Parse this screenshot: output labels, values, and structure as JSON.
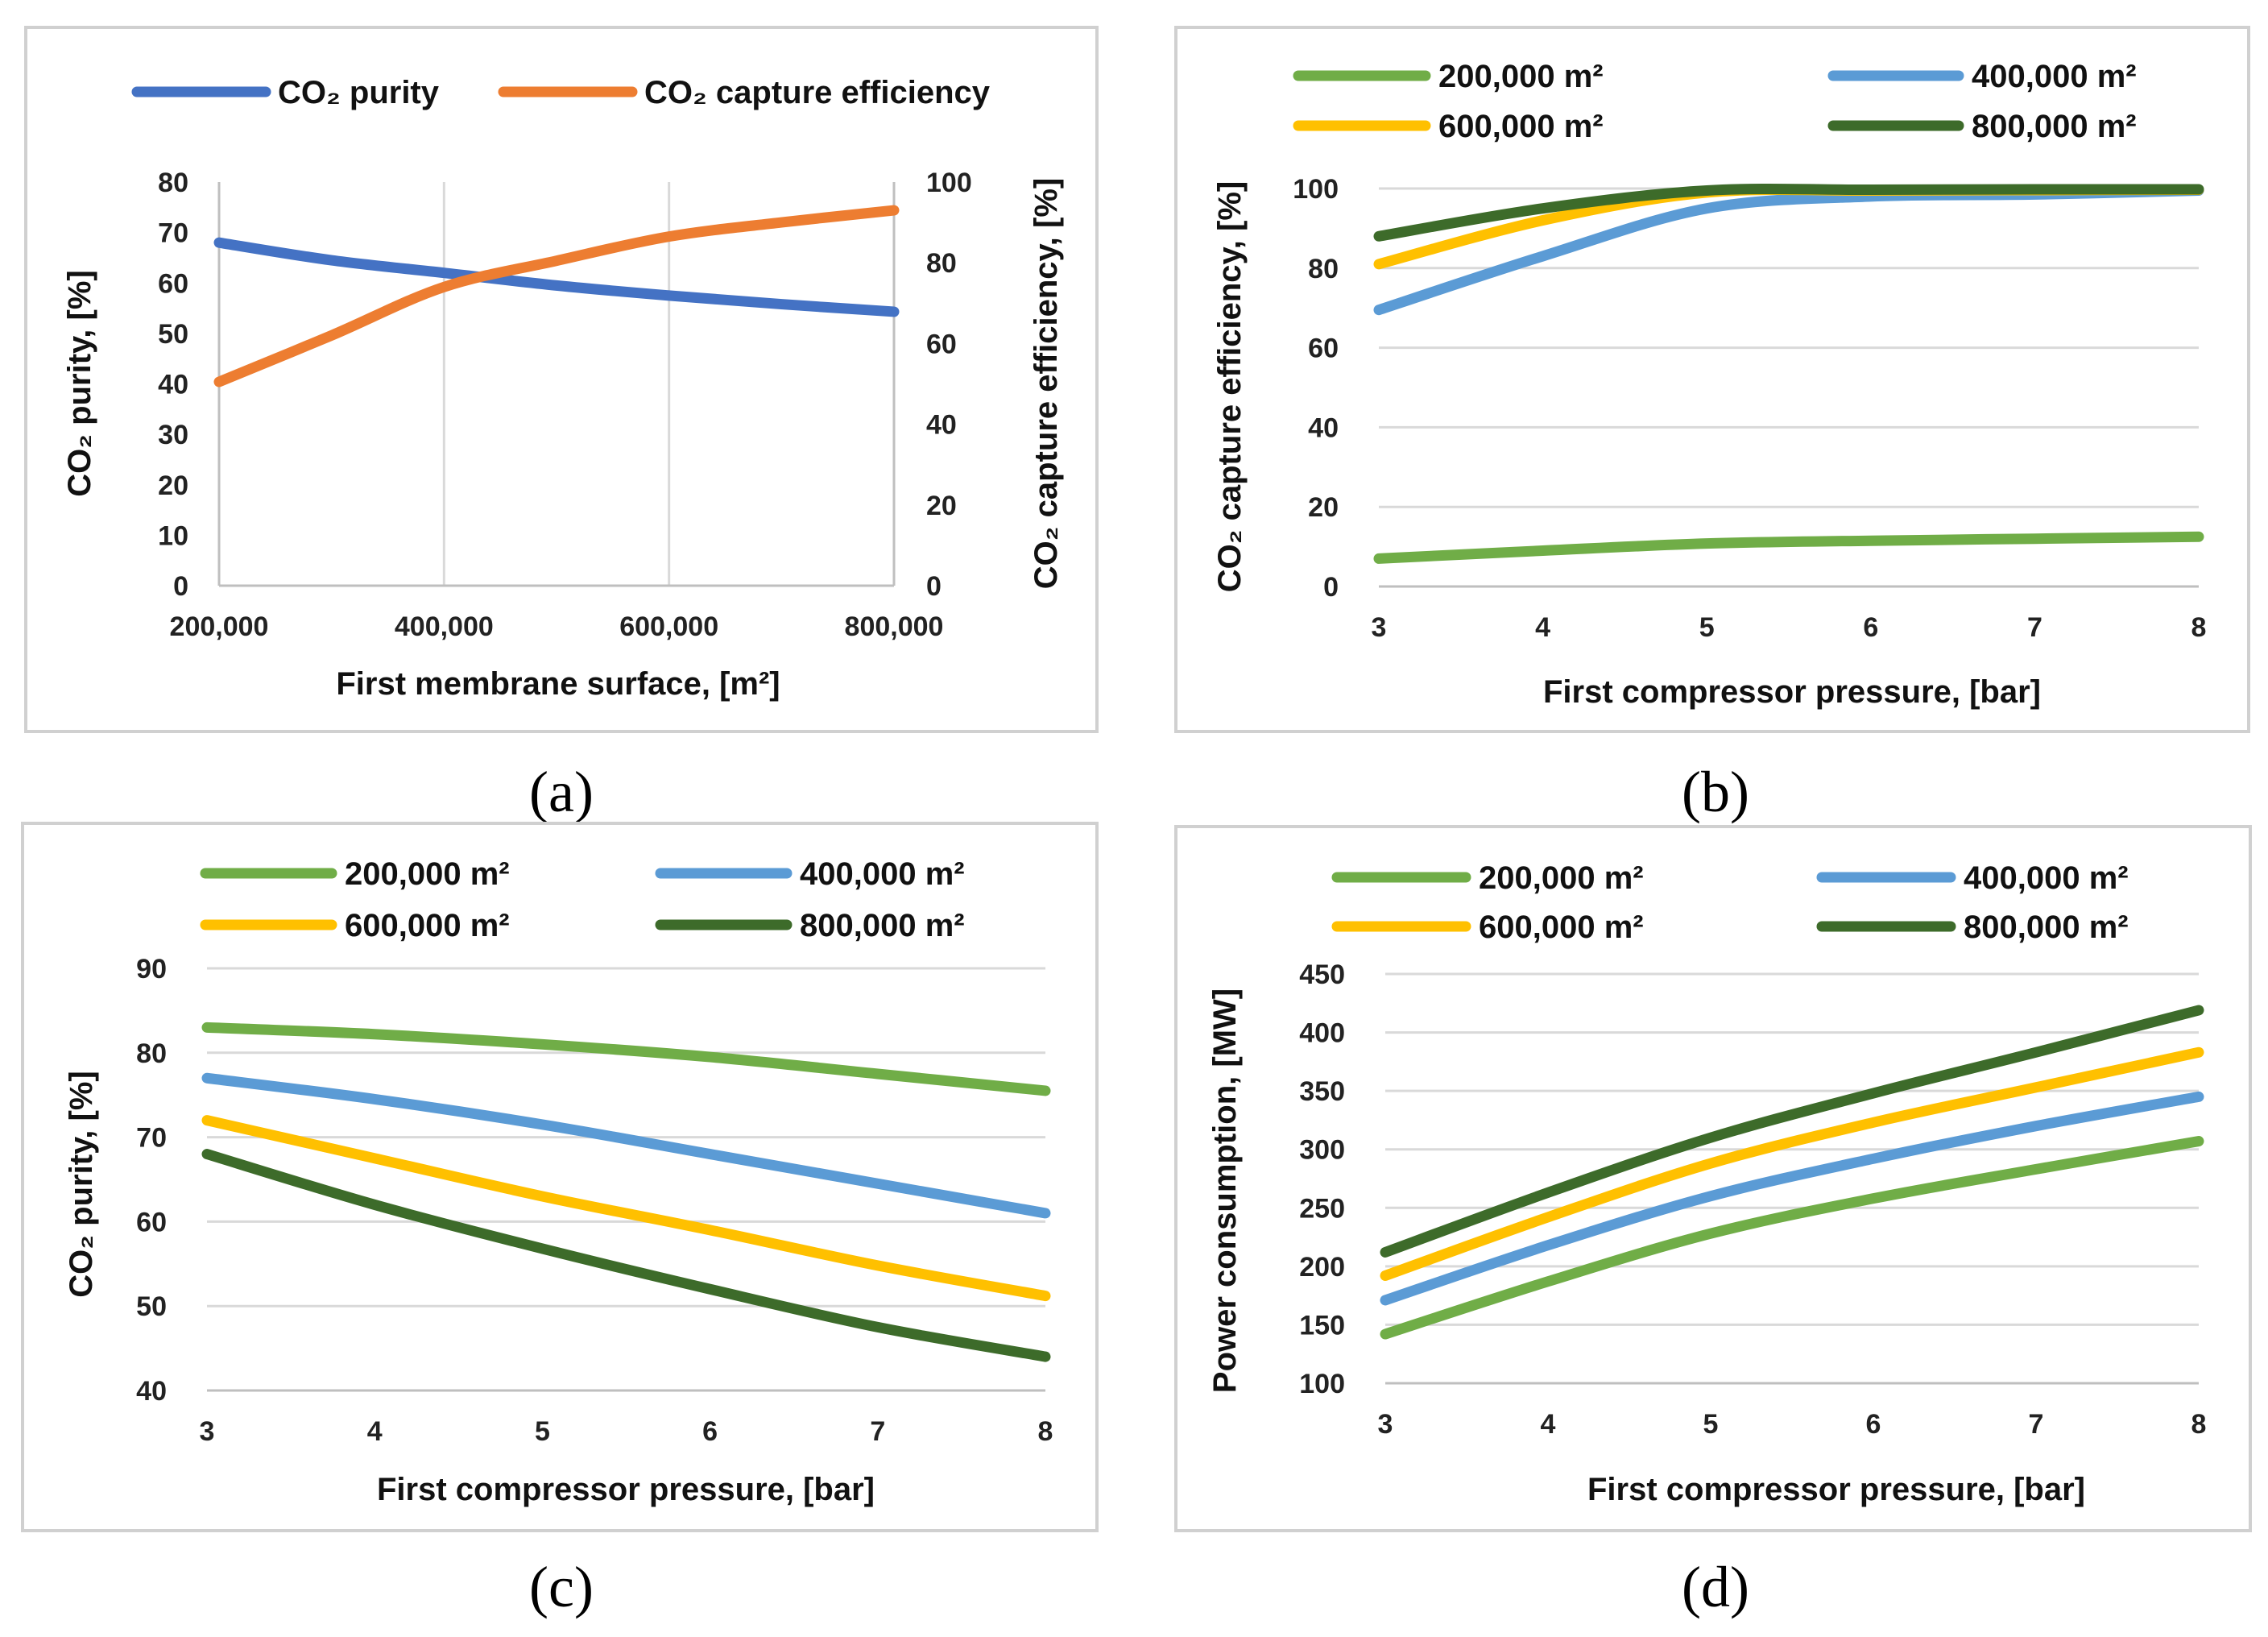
{
  "colors": {
    "blue_a": "#4472C4",
    "orange_a": "#ED7D31",
    "green": "#70AD47",
    "lightblue": "#5B9BD5",
    "yellow": "#FFC000",
    "darkgreen": "#3D6B2A"
  },
  "chart_data": [
    {
      "id": "a",
      "type": "line",
      "caption": "(a)",
      "caption_letter": "a",
      "xlabel": "First membrane surface, [m²]",
      "ylabel_left": "CO₂ purity, [%]",
      "ylabel_right": "CO₂ capture efficiency, [%]",
      "x": [
        200000,
        300000,
        400000,
        500000,
        600000,
        700000,
        800000
      ],
      "xticks": [
        "200,000",
        "400,000",
        "600,000",
        "800,000"
      ],
      "xtick_values": [
        200000,
        400000,
        600000,
        800000
      ],
      "xlim": [
        200000,
        800000
      ],
      "ylim_left": [
        0,
        80
      ],
      "yticks_left": [
        "0",
        "10",
        "20",
        "30",
        "40",
        "50",
        "60",
        "70",
        "80"
      ],
      "ylim_right": [
        0,
        100
      ],
      "yticks_right": [
        "0",
        "20",
        "40",
        "60",
        "80",
        "100"
      ],
      "series": [
        {
          "name": "CO₂ purity",
          "color_key": "blue_a",
          "axis": "left",
          "values": [
            68,
            64.5,
            62,
            59.5,
            57.5,
            55.8,
            54.3
          ]
        },
        {
          "name": "CO₂ capture efficiency",
          "color_key": "orange_a",
          "axis": "right",
          "values": [
            50.5,
            62,
            74,
            80.5,
            86.5,
            90,
            93
          ]
        }
      ]
    },
    {
      "id": "b",
      "type": "line",
      "caption": "(b)",
      "caption_letter": "b",
      "xlabel": "First compressor pressure, [bar]",
      "ylabel": "CO₂ capture efficiency, [%]",
      "x": [
        3,
        4,
        5,
        6,
        7,
        8
      ],
      "xticks": [
        "3",
        "4",
        "5",
        "6",
        "7",
        "8"
      ],
      "xlim": [
        3,
        8
      ],
      "ylim": [
        0,
        100
      ],
      "yticks": [
        "0",
        "20",
        "40",
        "60",
        "80",
        "100"
      ],
      "series": [
        {
          "name": "200,000 m²",
          "color_key": "green",
          "values": [
            7,
            9,
            10.8,
            11.5,
            12,
            12.5
          ]
        },
        {
          "name": "400,000 m²",
          "color_key": "lightblue",
          "values": [
            69.5,
            83,
            95,
            98,
            98.5,
            99.5
          ]
        },
        {
          "name": "600,000 m²",
          "color_key": "yellow",
          "values": [
            81,
            92,
            99,
            99.5,
            99.6,
            99.7
          ]
        },
        {
          "name": "800,000 m²",
          "color_key": "darkgreen",
          "values": [
            88,
            95,
            99.5,
            99.7,
            99.8,
            99.8
          ]
        }
      ]
    },
    {
      "id": "c",
      "type": "line",
      "caption": "(c)",
      "caption_letter": "c",
      "xlabel": "First compressor pressure, [bar]",
      "ylabel": "CO₂ purity, [%]",
      "x": [
        3,
        4,
        5,
        6,
        7,
        8
      ],
      "xticks": [
        "3",
        "4",
        "5",
        "6",
        "7",
        "8"
      ],
      "xlim": [
        3,
        8
      ],
      "ylim": [
        40,
        90
      ],
      "yticks": [
        "40",
        "50",
        "60",
        "70",
        "80",
        "90"
      ],
      "series": [
        {
          "name": "200,000 m²",
          "color_key": "green",
          "values": [
            83,
            82.2,
            81,
            79.5,
            77.5,
            75.5
          ]
        },
        {
          "name": "400,000 m²",
          "color_key": "lightblue",
          "values": [
            77,
            74.5,
            71.5,
            68,
            64.5,
            61
          ]
        },
        {
          "name": "600,000 m²",
          "color_key": "yellow",
          "values": [
            72,
            67.5,
            63,
            59,
            54.8,
            51.2
          ]
        },
        {
          "name": "800,000 m²",
          "color_key": "darkgreen",
          "values": [
            68,
            62,
            56.8,
            52,
            47.5,
            44
          ]
        }
      ]
    },
    {
      "id": "d",
      "type": "line",
      "caption": "(d)",
      "caption_letter": "d",
      "xlabel": "First compressor pressure, [bar]",
      "ylabel": "Power consumption, [MW]",
      "x": [
        3,
        4,
        5,
        6,
        7,
        8
      ],
      "xticks": [
        "3",
        "4",
        "5",
        "6",
        "7",
        "8"
      ],
      "xlim": [
        3,
        8
      ],
      "ylim": [
        100,
        450
      ],
      "yticks": [
        "100",
        "150",
        "200",
        "250",
        "300",
        "350",
        "400",
        "450"
      ],
      "series": [
        {
          "name": "200,000 m²",
          "color_key": "green",
          "values": [
            142,
            187,
            228,
            258,
            283,
            307
          ]
        },
        {
          "name": "400,000 m²",
          "color_key": "lightblue",
          "values": [
            171,
            218,
            260,
            292,
            320,
            345
          ]
        },
        {
          "name": "600,000 m²",
          "color_key": "yellow",
          "values": [
            192,
            242,
            288,
            323,
            353,
            383
          ]
        },
        {
          "name": "800,000 m²",
          "color_key": "darkgreen",
          "values": [
            212,
            263,
            310,
            348,
            383,
            419
          ]
        }
      ]
    }
  ]
}
